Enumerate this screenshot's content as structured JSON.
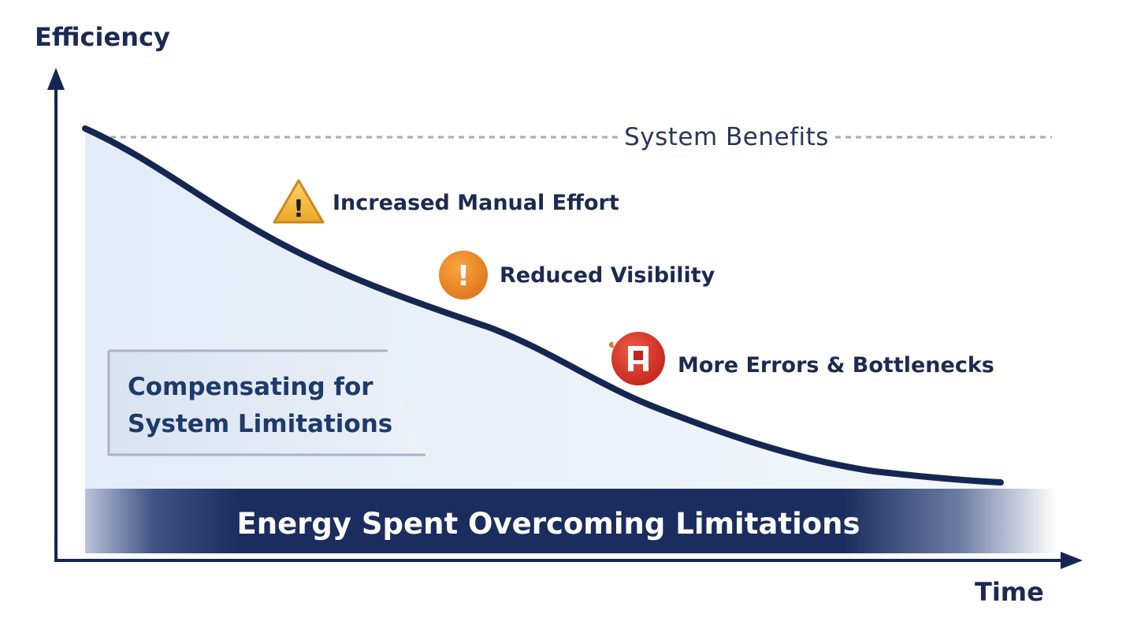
{
  "axes": {
    "y_label": "Efficiency",
    "x_label": "Time"
  },
  "benefits_line": {
    "label": "System Benefits"
  },
  "callouts": [
    {
      "icon": "warning-triangle-icon",
      "label": "Increased Manual Effort",
      "color": "#f2b134"
    },
    {
      "icon": "exclamation-circle-icon",
      "label": "Reduced Visibility",
      "color": "#ee8a1e"
    },
    {
      "icon": "error-stop-icon",
      "label": "More Errors & Bottlenecks",
      "color": "#d8342a"
    }
  ],
  "compensating_box": {
    "line1": "Compensating for",
    "line2": "System Limitations"
  },
  "energy_band": {
    "label": "Energy Spent Overcoming Limitations",
    "color": "#1a2d5e"
  },
  "colors": {
    "curve": "#162653",
    "axis": "#162653",
    "area_fill": "#e8eff8",
    "benefit_line": "#a7acb5"
  }
}
